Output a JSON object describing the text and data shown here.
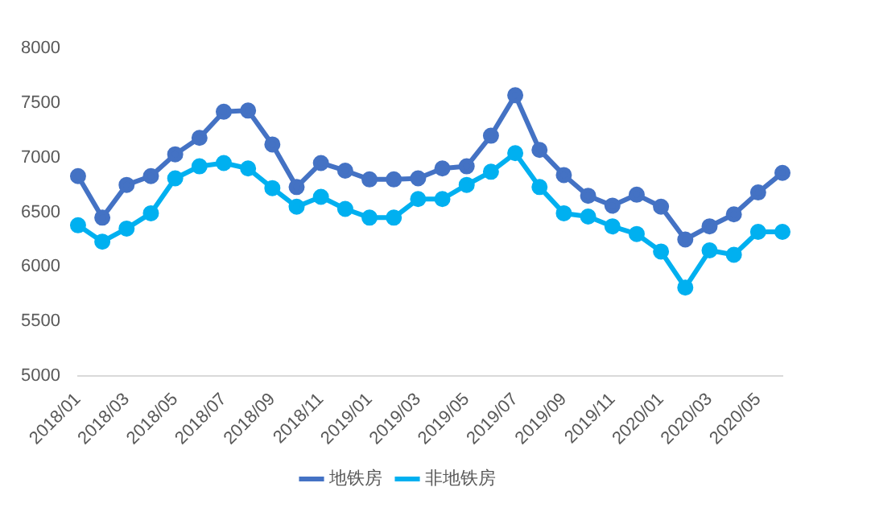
{
  "chart_data": {
    "type": "line",
    "categories": [
      "2018/01",
      null,
      "2018/03",
      null,
      "2018/05",
      null,
      "2018/07",
      null,
      "2018/09",
      null,
      "2018/11",
      null,
      "2019/01",
      null,
      "2019/03",
      null,
      "2019/05",
      null,
      "2019/07",
      null,
      "2019/09",
      null,
      "2019/11",
      null,
      "2020/01",
      null,
      "2020/03",
      null,
      "2020/05",
      null
    ],
    "series": [
      {
        "name": "地铁房",
        "color": "#4472c4",
        "values": [
          6830,
          6450,
          6750,
          6830,
          7030,
          7180,
          7420,
          7430,
          7120,
          6730,
          6950,
          6880,
          6800,
          6800,
          6810,
          6900,
          6920,
          7200,
          7570,
          7070,
          6840,
          6650,
          6560,
          6660,
          6550,
          6250,
          6370,
          6480,
          6680,
          6860
        ]
      },
      {
        "name": "非地铁房",
        "color": "#00b0f0",
        "values": [
          6380,
          6230,
          6350,
          6490,
          6810,
          6920,
          6950,
          6900,
          6720,
          6550,
          6640,
          6530,
          6450,
          6450,
          6620,
          6620,
          6750,
          6870,
          7040,
          6730,
          6490,
          6460,
          6370,
          6300,
          6140,
          5810,
          6150,
          6110,
          6320,
          6320
        ]
      }
    ],
    "ylim": [
      5000,
      8000
    ],
    "yticks": [
      5000,
      5500,
      6000,
      6500,
      7000,
      7500,
      8000
    ],
    "grid": false,
    "legend": "bottom",
    "marker": "circle",
    "line_style": "solid"
  }
}
